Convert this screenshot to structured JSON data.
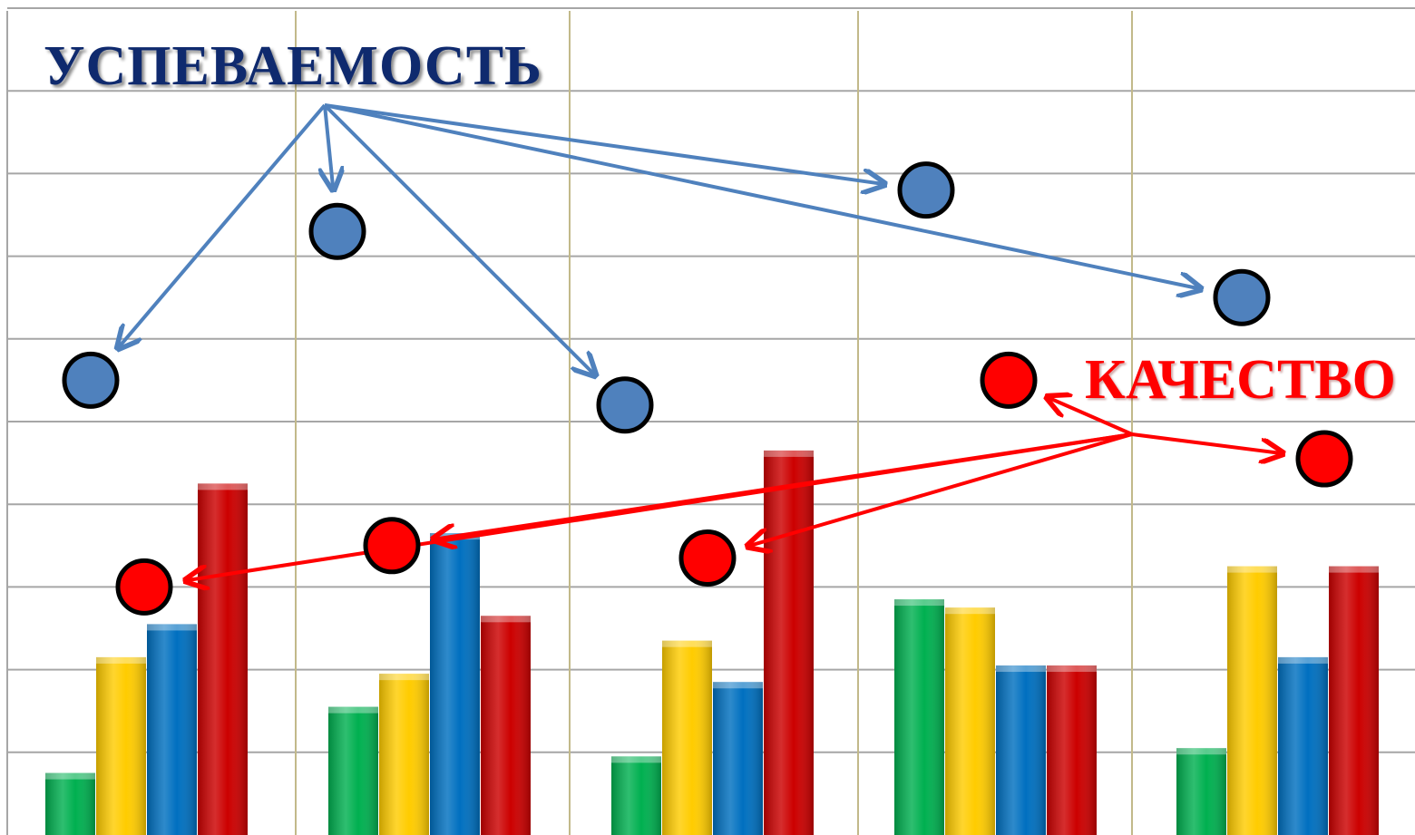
{
  "chart_data": {
    "type": "bar",
    "title": "",
    "xlabel": "",
    "ylabel": "",
    "ylim": [
      0,
      10
    ],
    "grid": true,
    "categories": [
      "",
      "",
      "",
      "",
      ""
    ],
    "series": [
      {
        "color": "#00b050",
        "values": [
          0.75,
          1.55,
          0.95,
          2.85,
          1.05
        ]
      },
      {
        "color": "#ffcc00",
        "values": [
          2.15,
          1.95,
          2.35,
          2.75,
          3.25
        ]
      },
      {
        "color": "#0070c0",
        "values": [
          2.55,
          3.65,
          1.85,
          2.05,
          2.15
        ]
      },
      {
        "color": "#cc0000",
        "values": [
          4.25,
          2.65,
          4.65,
          2.05,
          3.25
        ]
      }
    ],
    "markers": {
      "uspevaemost": {
        "color": "#4f81bd",
        "values": [
          5.5,
          7.3,
          5.2,
          7.8,
          6.5
        ]
      },
      "kachestvo": {
        "color": "#ff0000",
        "values": [
          3.0,
          3.5,
          3.35,
          5.5,
          4.55
        ]
      }
    },
    "annotations": {
      "uspevaemost_label": "УСПЕВАЕМОСТЬ",
      "kachestvo_label": "КАЧЕСТВО"
    }
  }
}
